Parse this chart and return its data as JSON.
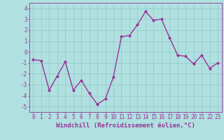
{
  "x": [
    0,
    1,
    2,
    3,
    4,
    5,
    6,
    7,
    8,
    9,
    10,
    11,
    12,
    13,
    14,
    15,
    16,
    17,
    18,
    19,
    20,
    21,
    22,
    23
  ],
  "y": [
    -0.7,
    -0.8,
    -3.5,
    -2.2,
    -0.9,
    -3.5,
    -2.6,
    -3.8,
    -4.8,
    -4.3,
    -2.3,
    1.4,
    1.5,
    2.5,
    3.7,
    2.9,
    3.0,
    1.3,
    -0.3,
    -0.4,
    -1.1,
    -0.3,
    -1.5,
    -1.0
  ],
  "line_color": "#993399",
  "marker": "D",
  "markersize": 2.0,
  "linewidth": 1.0,
  "bg_color": "#b0e0e0",
  "grid_color": "#90c8c8",
  "xlabel": "Windchill (Refroidissement éolien,°C)",
  "xlabel_color": "#993399",
  "xlabel_fontsize": 6.5,
  "tick_color": "#993399",
  "tick_fontsize": 5.5,
  "yticks": [
    -5,
    -4,
    -3,
    -2,
    -1,
    0,
    1,
    2,
    3,
    4
  ],
  "xticks": [
    0,
    1,
    2,
    3,
    4,
    5,
    6,
    7,
    8,
    9,
    10,
    11,
    12,
    13,
    14,
    15,
    16,
    17,
    18,
    19,
    20,
    21,
    22,
    23
  ],
  "ylim": [
    -5.5,
    4.5
  ],
  "xlim": [
    -0.5,
    23.5
  ]
}
